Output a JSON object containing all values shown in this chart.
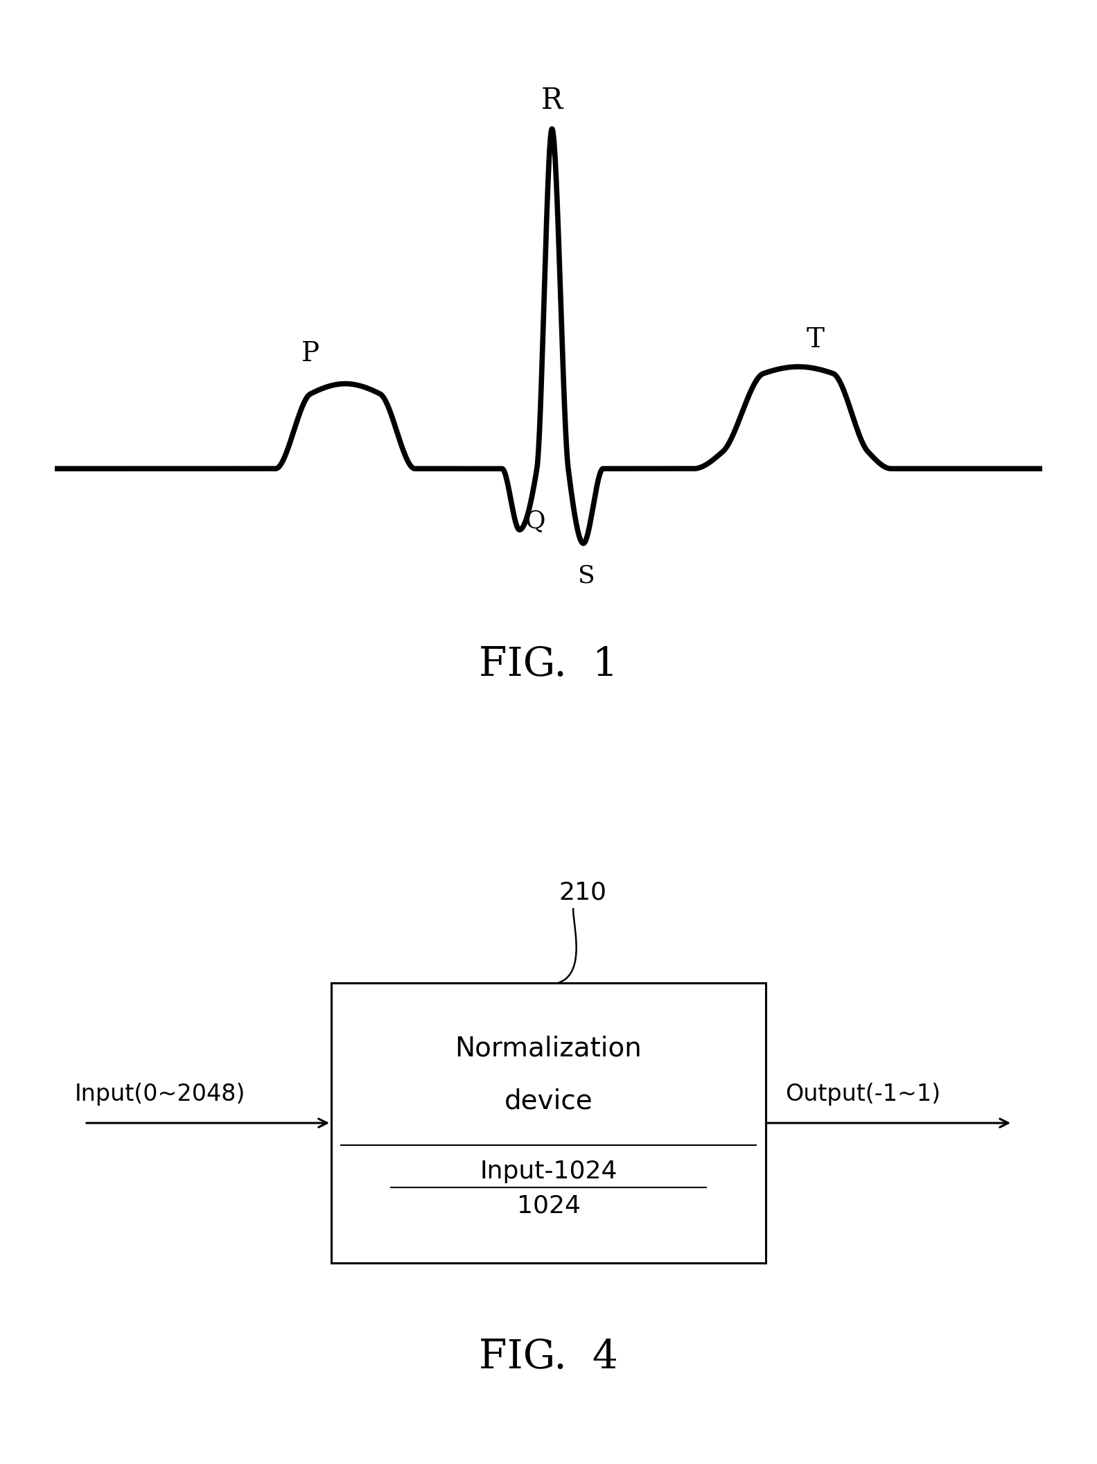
{
  "background_color": "#ffffff",
  "fig1_title": "FIG.  1",
  "fig4_title": "FIG.  4",
  "ecg_linewidth": 5.5,
  "ecg_color": "#000000",
  "box_label_norm": "Normalization",
  "box_label_device": "device",
  "box_label_formula_num": "Input-1024",
  "box_label_formula_den": "1024",
  "box_ref": "210",
  "input_label": "Input(0~2048)",
  "output_label": "Output(-1~1)",
  "label_P": "P",
  "label_Q": "Q",
  "label_R": "R",
  "label_S": "S",
  "label_T": "T",
  "font_size_label": 26,
  "font_size_fig_title": 42,
  "font_size_box_text": 26,
  "font_size_ref": 24,
  "font_size_io": 24
}
